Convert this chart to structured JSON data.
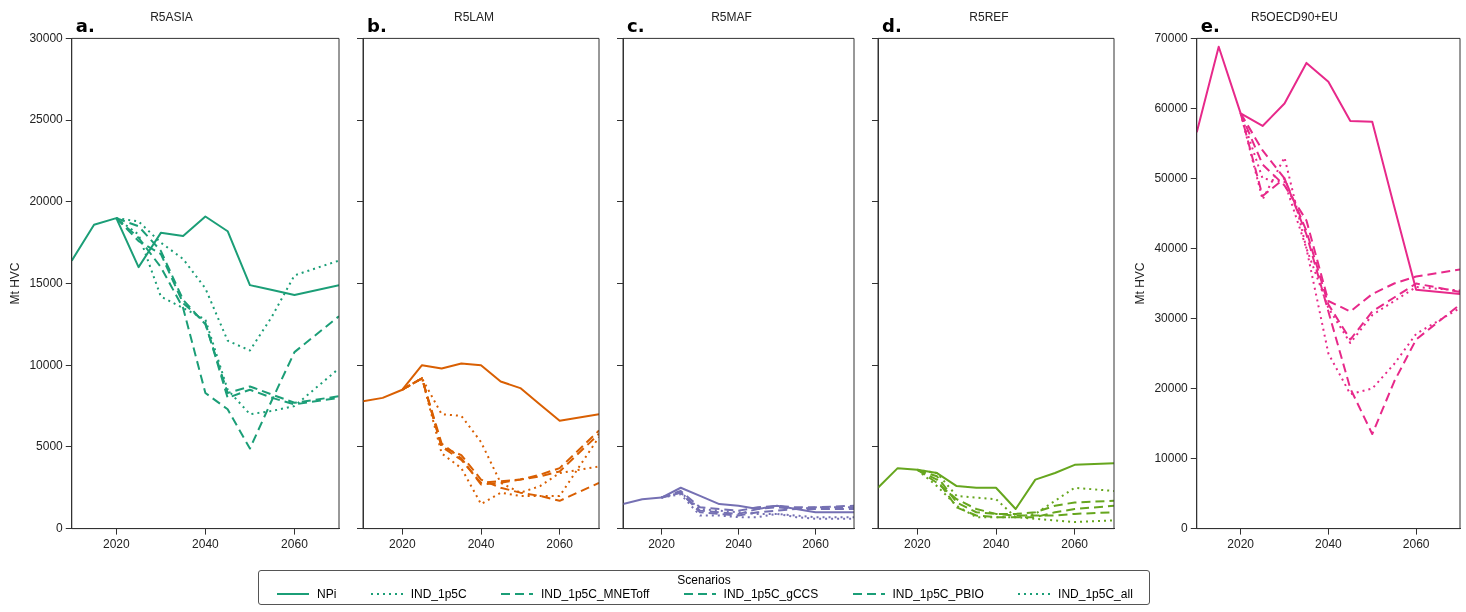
{
  "chart_data": [
    {
      "type": "line",
      "title": "R5ASIA",
      "ylabel": "Mt HVC",
      "annotations": [
        "a."
      ],
      "x": [
        2010,
        2015,
        2020,
        2025,
        2030,
        2035,
        2040,
        2045,
        2050,
        2055,
        2060,
        2070
      ],
      "xlim": [
        2010,
        2070
      ],
      "xticks": [
        2020,
        2040,
        2060
      ],
      "ylim": [
        0,
        30000
      ],
      "yticks": [
        0,
        5000,
        10000,
        15000,
        20000,
        25000,
        30000
      ],
      "grid": false,
      "legend": "bottom",
      "legend_title": "Scenarios",
      "series": [
        {
          "name": "NPi",
          "color": "#1b9e77",
          "line_style": "solid",
          "values": [
            16400,
            18600,
            19000,
            16000,
            18100,
            17900,
            19100,
            18200,
            14900,
            14600,
            14300,
            14900
          ]
        },
        {
          "name": "IND_1p5C",
          "color": "#1b9e77",
          "line_style": "dotted",
          "values": [
            null,
            null,
            19000,
            18800,
            17500,
            16500,
            14700,
            11500,
            10900,
            13000,
            15500,
            16400
          ]
        },
        {
          "name": "IND_1p5C_MNEToff",
          "color": "#1b9e77",
          "line_style": "dashed",
          "values": [
            null,
            null,
            19000,
            17800,
            16000,
            13500,
            8300,
            7300,
            4900,
            7900,
            10800,
            13000
          ]
        },
        {
          "name": "IND_1p5C_gCCS",
          "color": "#1b9e77",
          "line_style": "dashed",
          "values": [
            null,
            null,
            19000,
            17600,
            16800,
            13800,
            12600,
            8000,
            8500,
            8000,
            7600,
            8000
          ]
        },
        {
          "name": "IND_1p5C_PBIO",
          "color": "#1b9e77",
          "line_style": "dashed",
          "values": [
            null,
            null,
            19000,
            18500,
            17000,
            14000,
            12500,
            8300,
            8700,
            8200,
            7700,
            8100
          ]
        },
        {
          "name": "IND_1p5C_all",
          "color": "#1b9e77",
          "line_style": "dotted",
          "values": [
            null,
            null,
            19000,
            18000,
            14200,
            13500,
            12800,
            8500,
            7000,
            7200,
            7500,
            9800
          ]
        }
      ]
    },
    {
      "type": "line",
      "title": "R5LAM",
      "annotations": [
        "b."
      ],
      "x": [
        2010,
        2015,
        2020,
        2025,
        2030,
        2035,
        2040,
        2045,
        2050,
        2055,
        2060,
        2070
      ],
      "xlim": [
        2010,
        2070
      ],
      "xticks": [
        2020,
        2040,
        2060
      ],
      "ylim": [
        0,
        30000
      ],
      "yticks": [
        0,
        5000,
        10000,
        15000,
        20000,
        25000,
        30000
      ],
      "tick_labels": "x",
      "grid": false,
      "series": [
        {
          "color": "#d95f02",
          "line_style": "solid",
          "values": [
            7800,
            8000,
            8500,
            10000,
            9800,
            10100,
            10000,
            9000,
            8600,
            7600,
            6600,
            7000
          ]
        },
        {
          "color": "#d95f02",
          "line_style": "dotted",
          "values": [
            null,
            null,
            8500,
            9200,
            7000,
            6900,
            5300,
            2800,
            2200,
            2600,
            3400,
            3800
          ]
        },
        {
          "color": "#d95f02",
          "line_style": "dashed",
          "values": [
            null,
            null,
            8500,
            9200,
            5000,
            4500,
            3000,
            2500,
            2200,
            2000,
            1700,
            2800
          ]
        },
        {
          "color": "#d95f02",
          "line_style": "dashed",
          "values": [
            null,
            null,
            8500,
            9200,
            5000,
            4200,
            2800,
            2900,
            3000,
            3200,
            3500,
            5800
          ]
        },
        {
          "color": "#d95f02",
          "line_style": "dashed",
          "values": [
            null,
            null,
            8500,
            9200,
            5200,
            4300,
            2700,
            2800,
            3000,
            3300,
            3700,
            6000
          ]
        },
        {
          "color": "#d95f02",
          "line_style": "dotted",
          "values": [
            null,
            null,
            8500,
            9200,
            4600,
            3700,
            1500,
            2200,
            2000,
            2000,
            2000,
            5600
          ]
        }
      ]
    },
    {
      "type": "line",
      "title": "R5MAF",
      "annotations": [
        "c."
      ],
      "x": [
        2010,
        2015,
        2020,
        2025,
        2030,
        2035,
        2040,
        2045,
        2050,
        2055,
        2060,
        2070
      ],
      "xlim": [
        2010,
        2070
      ],
      "xticks": [
        2020,
        2040,
        2060
      ],
      "ylim": [
        0,
        30000
      ],
      "yticks": [
        0,
        5000,
        10000,
        15000,
        20000,
        25000,
        30000
      ],
      "tick_labels": "x",
      "grid": false,
      "series": [
        {
          "color": "#7570b3",
          "line_style": "solid",
          "values": [
            1500,
            1800,
            1900,
            2500,
            2000,
            1500,
            1400,
            1200,
            1400,
            1200,
            1000,
            1000
          ]
        },
        {
          "color": "#7570b3",
          "line_style": "dotted",
          "values": [
            null,
            null,
            1900,
            2200,
            1200,
            1100,
            1000,
            900,
            900,
            800,
            700,
            700
          ]
        },
        {
          "color": "#7570b3",
          "line_style": "dashed",
          "values": [
            null,
            null,
            1900,
            2200,
            1000,
            900,
            800,
            1000,
            1100,
            1200,
            1300,
            1300
          ]
        },
        {
          "color": "#7570b3",
          "line_style": "dashed",
          "values": [
            null,
            null,
            1900,
            2200,
            1100,
            1000,
            900,
            1200,
            1300,
            1200,
            1200,
            1200
          ]
        },
        {
          "color": "#7570b3",
          "line_style": "dashed",
          "values": [
            null,
            null,
            1900,
            2300,
            1300,
            1200,
            1100,
            1300,
            1400,
            1300,
            1300,
            1400
          ]
        },
        {
          "color": "#7570b3",
          "line_style": "dotted",
          "values": [
            null,
            null,
            1900,
            2100,
            800,
            800,
            700,
            700,
            900,
            700,
            600,
            600
          ]
        }
      ]
    },
    {
      "type": "line",
      "title": "R5REF",
      "annotations": [
        "d."
      ],
      "x": [
        2010,
        2015,
        2020,
        2025,
        2030,
        2035,
        2040,
        2045,
        2050,
        2055,
        2060,
        2070
      ],
      "xlim": [
        2010,
        2070
      ],
      "xticks": [
        2020,
        2040,
        2060
      ],
      "ylim": [
        0,
        30000
      ],
      "yticks": [
        0,
        5000,
        10000,
        15000,
        20000,
        25000,
        30000
      ],
      "tick_labels": "x",
      "grid": false,
      "series": [
        {
          "color": "#66a61e",
          "line_style": "solid",
          "values": [
            2500,
            3700,
            3600,
            3400,
            2600,
            2500,
            2500,
            1200,
            3000,
            3400,
            3900,
            4000
          ]
        },
        {
          "color": "#66a61e",
          "line_style": "dotted",
          "values": [
            null,
            null,
            3600,
            2600,
            1400,
            700,
            700,
            700,
            600,
            500,
            400,
            500
          ]
        },
        {
          "color": "#66a61e",
          "line_style": "dashed",
          "values": [
            null,
            null,
            3600,
            2800,
            1800,
            1200,
            900,
            800,
            800,
            800,
            900,
            1000
          ]
        },
        {
          "color": "#66a61e",
          "line_style": "dashed",
          "values": [
            null,
            null,
            3600,
            3000,
            1300,
            800,
            700,
            700,
            700,
            1000,
            1200,
            1400
          ]
        },
        {
          "color": "#66a61e",
          "line_style": "dashed",
          "values": [
            null,
            null,
            3600,
            3200,
            1600,
            1000,
            900,
            900,
            1000,
            1400,
            1600,
            1700
          ]
        },
        {
          "color": "#66a61e",
          "line_style": "dotted",
          "values": [
            null,
            null,
            3600,
            3400,
            2000,
            1900,
            1800,
            700,
            900,
            1700,
            2500,
            2300
          ]
        }
      ]
    },
    {
      "type": "line",
      "title": "R5OECD90+EU",
      "ylabel": "Mt HVC",
      "annotations": [
        "e."
      ],
      "x": [
        2010,
        2015,
        2020,
        2025,
        2030,
        2035,
        2040,
        2045,
        2050,
        2055,
        2060,
        2070
      ],
      "xlim": [
        2010,
        2070
      ],
      "xticks": [
        2020,
        2040,
        2060
      ],
      "ylim": [
        0,
        70000
      ],
      "yticks": [
        0,
        10000,
        20000,
        30000,
        40000,
        50000,
        60000,
        70000
      ],
      "grid": false,
      "series": [
        {
          "color": "#e7298a",
          "line_style": "solid",
          "values": [
            56600,
            68800,
            59300,
            57500,
            60700,
            66500,
            63800,
            58200,
            58100,
            46000,
            34100,
            33500
          ]
        },
        {
          "color": "#e7298a",
          "line_style": "dotted",
          "values": [
            null,
            null,
            59300,
            47000,
            53000,
            40000,
            25000,
            19200,
            20000,
            23500,
            27800,
            31500
          ]
        },
        {
          "color": "#e7298a",
          "line_style": "dashed",
          "values": [
            null,
            null,
            59300,
            47500,
            50000,
            42000,
            31000,
            20000,
            13500,
            21000,
            27000,
            32000
          ]
        },
        {
          "color": "#e7298a",
          "line_style": "dashed",
          "values": [
            null,
            null,
            59300,
            54000,
            50000,
            42500,
            32000,
            27000,
            31000,
            33000,
            35000,
            33800
          ]
        },
        {
          "color": "#e7298a",
          "line_style": "dashed",
          "values": [
            null,
            null,
            59300,
            52000,
            49000,
            44000,
            32500,
            31000,
            33500,
            35000,
            36000,
            37000
          ]
        },
        {
          "color": "#e7298a",
          "line_style": "dotted",
          "values": [
            null,
            null,
            59300,
            50000,
            49500,
            40000,
            31500,
            26500,
            30500,
            32500,
            34500,
            34000
          ]
        }
      ]
    }
  ]
}
